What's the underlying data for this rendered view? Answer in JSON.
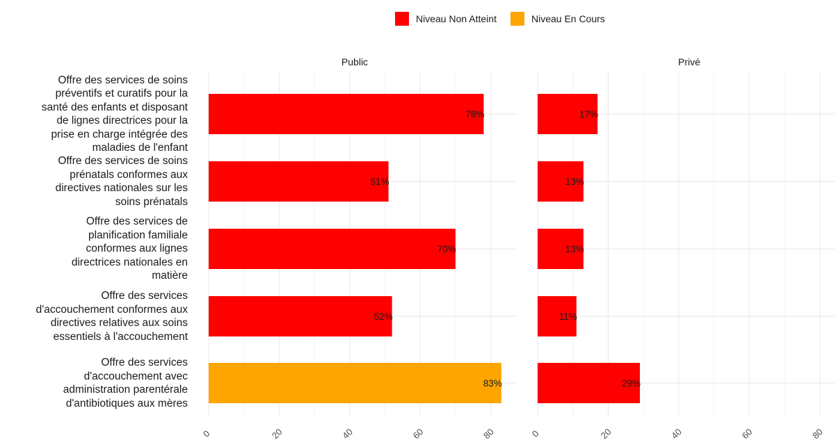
{
  "chart_data": {
    "type": "bar",
    "orientation": "horizontal",
    "categories": [
      "Offre des services de soins préventifs et curatifs pour la santé des enfants et disposant de lignes directrices pour la prise en charge intégrée des maladies de l'enfant",
      "Offre des services de soins prénatals conformes aux directives nationales sur les soins prénatals",
      "Offre des services de planification familiale conformes aux lignes directrices nationales en matière",
      "Offre des services d'accouchement conformes aux directives relatives aux soins essentiels à l'accouchement",
      "Offre des services d'accouchement avec administration parentérale d'antibiotiques aux mères"
    ],
    "category_lines": [
      [
        "Offre des services de soins",
        "préventifs et curatifs pour la",
        "santé des enfants et disposant",
        "de lignes directrices pour la",
        "prise en charge intégrée des",
        "maladies de l'enfant"
      ],
      [
        "Offre des services de soins",
        "prénatals conformes aux",
        "directives nationales sur les",
        "soins prénatals"
      ],
      [
        "Offre des services de",
        "planification familiale",
        "conformes aux lignes",
        "directrices nationales en",
        "matière"
      ],
      [
        "Offre des services",
        "d'accouchement conformes aux",
        "directives relatives aux soins",
        "essentiels à l'accouchement"
      ],
      [
        "Offre des services",
        "d'accouchement avec",
        "administration parentérale",
        "d'antibiotiques aux mères"
      ]
    ],
    "facets": [
      {
        "title": "Public",
        "values": [
          78,
          51,
          70,
          52,
          83
        ],
        "labels": [
          "78%",
          "51%",
          "70%",
          "52%",
          "83%"
        ],
        "levels": [
          "Niveau Non Atteint",
          "Niveau Non Atteint",
          "Niveau Non Atteint",
          "Niveau Non Atteint",
          "Niveau En Cours"
        ]
      },
      {
        "title": "Privé",
        "values": [
          17,
          13,
          13,
          11,
          29
        ],
        "labels": [
          "17%",
          "13%",
          "13%",
          "11%",
          "29%"
        ],
        "levels": [
          "Niveau Non Atteint",
          "Niveau Non Atteint",
          "Niveau Non Atteint",
          "Niveau Non Atteint",
          "Niveau Non Atteint"
        ]
      }
    ],
    "legend": [
      {
        "name": "Niveau Non Atteint",
        "color": "#ff0000"
      },
      {
        "name": "Niveau En Cours",
        "color": "#ffa500"
      }
    ],
    "legend_position": "top",
    "xticks": [
      "0",
      "20",
      "40",
      "60",
      "80"
    ],
    "xlim": [
      0,
      85
    ],
    "grid": true
  }
}
